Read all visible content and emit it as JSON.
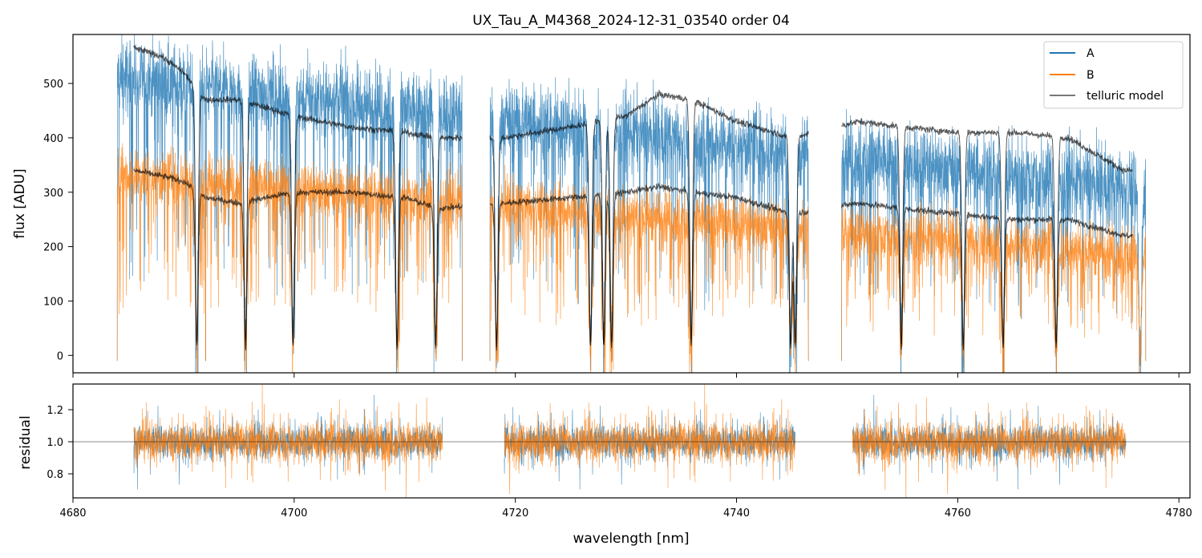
{
  "chart_data": [
    {
      "type": "line",
      "panel": "spectrum",
      "title": "UX_Tau_A_M4368_2024-12-31_03540  order 04",
      "xlabel": "",
      "ylabel": "flux [ADU]",
      "xlim": [
        4680,
        4781
      ],
      "ylim": [
        -32,
        590
      ],
      "xticks": [
        4680,
        4700,
        4720,
        4740,
        4760,
        4780
      ],
      "yticks": [
        0,
        100,
        200,
        300,
        400,
        500
      ],
      "ytick_labels": [
        "0",
        "100",
        "200",
        "300",
        "400",
        "500"
      ],
      "legend": {
        "position": "top-right",
        "entries": [
          "A",
          "B",
          "telluric model"
        ]
      },
      "segments_nm": [
        [
          4684.0,
          4692.0
        ],
        [
          4692.0,
          4695.5
        ],
        [
          4695.5,
          4715.2
        ],
        [
          4717.7,
          4746.5
        ],
        [
          4749.5,
          4777.0
        ]
      ],
      "series": [
        {
          "name": "A",
          "color": "#1f77b4",
          "continuum_start": 520,
          "continuum_end": 300,
          "noise_amp": 70,
          "note": "Trace A flux, strongly dipping into many absorption features (approx. range -30 to 590 ADU)"
        },
        {
          "name": "B",
          "color": "#ff7f0e",
          "continuum_start": 340,
          "continuum_end": 180,
          "noise_amp": 50,
          "note": "Trace B flux (approx. range -30 to 450 ADU)"
        },
        {
          "name": "telluric model",
          "color": "#000000",
          "model_x": [
            4685.5,
            4688,
            4690,
            4692,
            4695,
            4700,
            4705,
            4710,
            4713,
            4719,
            4725,
            4730,
            4733,
            4736,
            4740,
            4745,
            4751,
            4755,
            4760,
            4765,
            4770,
            4775
          ],
          "model_y_A": [
            565,
            550,
            520,
            470,
            470,
            440,
            420,
            410,
            400,
            400,
            420,
            440,
            480,
            470,
            430,
            400,
            430,
            420,
            410,
            410,
            400,
            340
          ],
          "model_y_B": [
            340,
            330,
            320,
            290,
            280,
            300,
            300,
            290,
            270,
            280,
            290,
            300,
            310,
            300,
            290,
            260,
            280,
            270,
            260,
            250,
            250,
            220
          ]
        }
      ],
      "absorption_lines_nm": [
        4691.2,
        4695.6,
        4699.9,
        4709.3,
        4712.8,
        4718.3,
        4726.8,
        4728.0,
        4728.7,
        4735.9,
        4744.9,
        4745.3,
        4754.9,
        4760.5,
        4764.1,
        4768.9,
        4776.5
      ]
    },
    {
      "type": "line",
      "panel": "residual",
      "xlabel": "wavelength [nm]",
      "ylabel": "residual",
      "xlim": [
        4680,
        4781
      ],
      "ylim": [
        0.65,
        1.36
      ],
      "xticks": [
        4680,
        4700,
        4720,
        4740,
        4760,
        4780
      ],
      "xtick_labels": [
        "4680",
        "4700",
        "4720",
        "4740",
        "4760",
        "4780"
      ],
      "yticks": [
        0.8,
        1.0,
        1.2
      ],
      "ytick_labels": [
        "0.8",
        "1.0",
        "1.2"
      ],
      "reference_line": 1.0,
      "segments_nm": [
        [
          4685.5,
          4713.4
        ],
        [
          4719.0,
          4745.3
        ],
        [
          4750.5,
          4775.2
        ]
      ],
      "series": [
        {
          "name": "A",
          "color": "#1f77b4",
          "center": 1.0,
          "spread": 0.18
        },
        {
          "name": "B",
          "color": "#ff7f0e",
          "center": 1.0,
          "spread": 0.22
        }
      ]
    }
  ]
}
